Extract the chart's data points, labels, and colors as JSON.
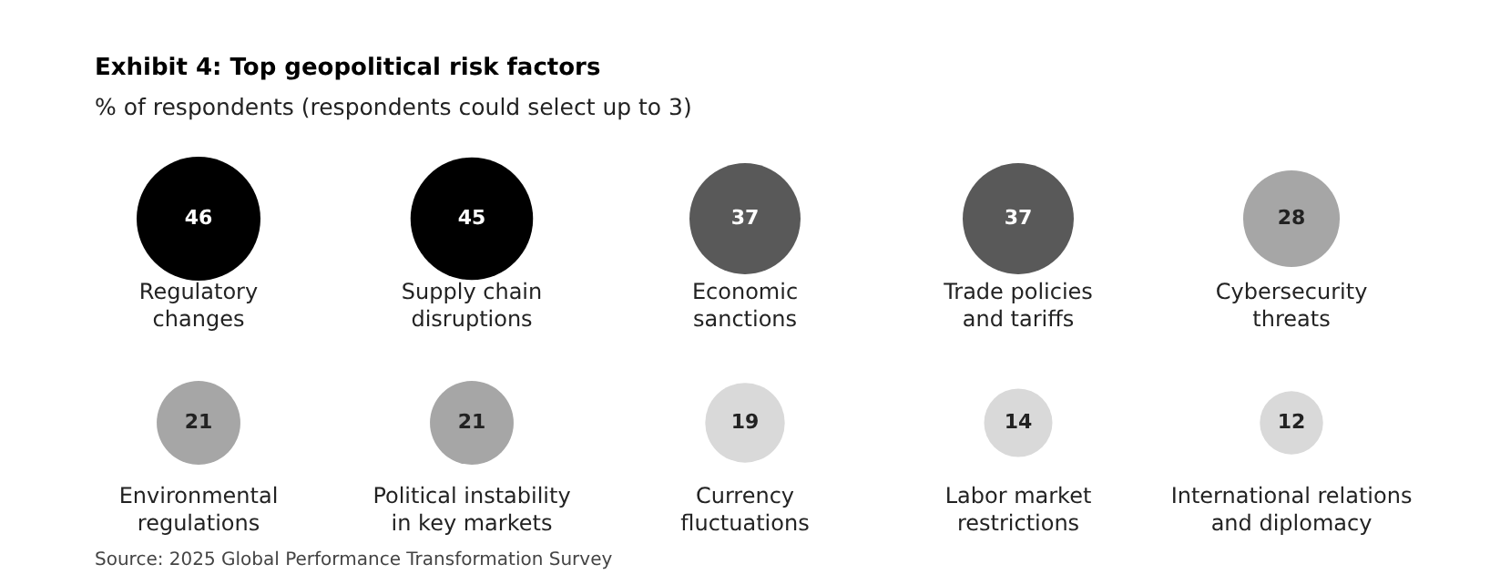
{
  "chart_data": {
    "type": "other",
    "title": "Exhibit 4: Top geopolitical risk factors",
    "subtitle": "% of respondents (respondents could select up to 3)",
    "categories": [
      "Regulatory\nchanges",
      "Supply chain\ndisruptions",
      "Economic\nsanctions",
      "Trade policies\nand tariffs",
      "Cybersecurity\nthreats",
      "Environmental\nregulations",
      "Political instability\nin key markets",
      "Currency\nfluctuations",
      "Labor market\nrestrictions",
      "International relations\nand diplomacy"
    ],
    "values": [
      46,
      45,
      37,
      37,
      28,
      21,
      21,
      19,
      14,
      12
    ],
    "colors": [
      "#000000",
      "#000000",
      "#595959",
      "#595959",
      "#a6a6a6",
      "#a6a6a6",
      "#a6a6a6",
      "#d9d9d9",
      "#d9d9d9",
      "#d9d9d9"
    ],
    "data_labels": true,
    "annotations": [
      "Source: 2025 Global Performance Transformation Survey"
    ]
  }
}
